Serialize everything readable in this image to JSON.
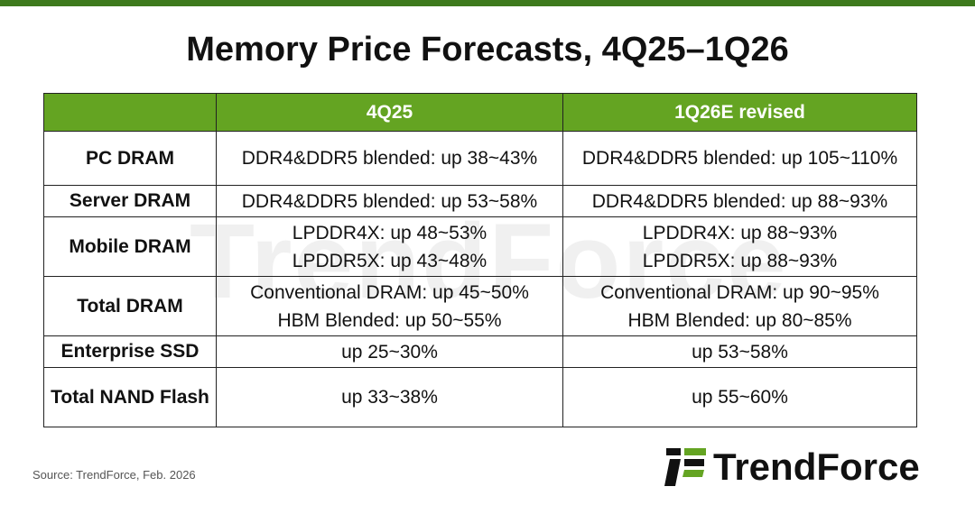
{
  "header": {
    "title": "Memory Price Forecasts, 4Q25–1Q26"
  },
  "table": {
    "columns": [
      "4Q25",
      "1Q26E revised"
    ],
    "rows": [
      {
        "label": "PC DRAM",
        "cells": [
          [
            "DDR4&DDR5 blended: up 38~43%"
          ],
          [
            "DDR4&DDR5 blended: up 105~110%"
          ]
        ]
      },
      {
        "label": "Server DRAM",
        "cells": [
          [
            "DDR4&DDR5 blended: up 53~58%"
          ],
          [
            "DDR4&DDR5 blended: up 88~93%"
          ]
        ]
      },
      {
        "label": "Mobile DRAM",
        "cells": [
          [
            "LPDDR4X: up 48~53%",
            "LPDDR5X: up 43~48%"
          ],
          [
            "LPDDR4X: up 88~93%",
            "LPDDR5X: up 88~93%"
          ]
        ]
      },
      {
        "label": "Total DRAM",
        "cells": [
          [
            "Conventional DRAM: up 45~50%",
            "HBM Blended: up 50~55%"
          ],
          [
            "Conventional DRAM: up 90~95%",
            "HBM Blended: up 80~85%"
          ]
        ]
      },
      {
        "label": "Enterprise SSD",
        "cells": [
          [
            "up 25~30%"
          ],
          [
            "up 53~58%"
          ]
        ]
      },
      {
        "label": "Total NAND Flash",
        "cells": [
          [
            "up 33~38%"
          ],
          [
            "up 55~60%"
          ]
        ]
      }
    ]
  },
  "watermark": "TrendForce",
  "footer": {
    "source": "Source: TrendForce, Feb. 2026",
    "logo": "TrendForce"
  }
}
